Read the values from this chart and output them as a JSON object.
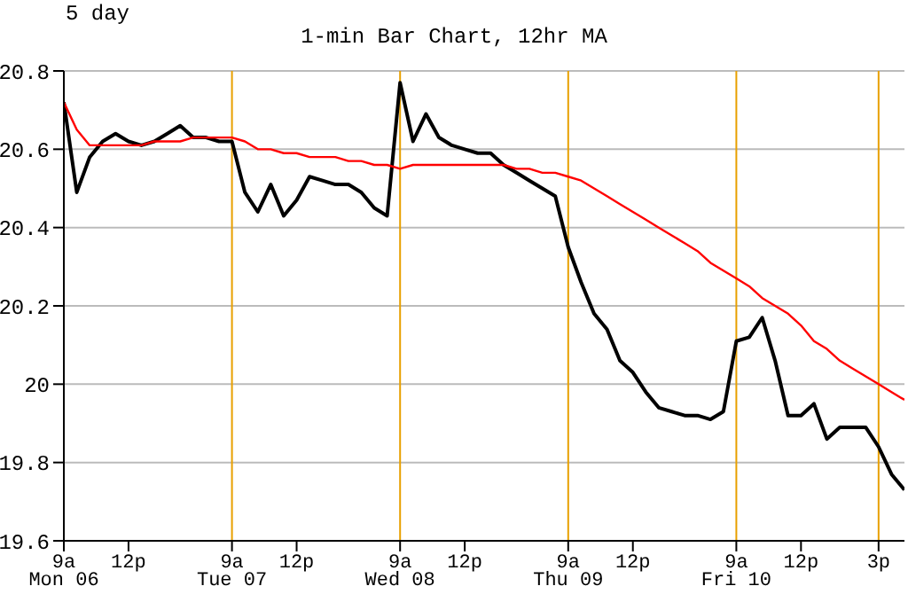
{
  "chart_data": {
    "type": "line",
    "title": "5 day",
    "subtitle": "1-min Bar Chart, 12hr MA",
    "categories": [
      "9a\nMon 06",
      null,
      null,
      null,
      null,
      "12p",
      null,
      null,
      null,
      null,
      null,
      null,
      null,
      "9a\nTue 07",
      null,
      null,
      null,
      null,
      "12p",
      null,
      null,
      null,
      null,
      null,
      null,
      null,
      "9a\nWed 08",
      null,
      null,
      null,
      null,
      "12p",
      null,
      null,
      null,
      null,
      null,
      null,
      null,
      "9a\nThu 09",
      null,
      null,
      null,
      null,
      "12p",
      null,
      null,
      null,
      null,
      null,
      null,
      null,
      "9a\nFri 10",
      null,
      null,
      null,
      null,
      "12p",
      null,
      null,
      null,
      null,
      null,
      "3p",
      null,
      null
    ],
    "ylim": [
      19.6,
      20.8
    ],
    "yticks": [
      19.6,
      19.8,
      20,
      20.2,
      20.4,
      20.6,
      20.8
    ],
    "grid": "y",
    "line_style": "solid",
    "ref_lines": [
      {
        "axis": "x",
        "value": "9a\nTue 07",
        "color": "#e8a000"
      },
      {
        "axis": "x",
        "value": "9a\nWed 08",
        "color": "#e8a000"
      },
      {
        "axis": "x",
        "value": "9a\nThu 09",
        "color": "#e8a000"
      },
      {
        "axis": "x",
        "value": "9a\nFri 10",
        "color": "#e8a000"
      },
      {
        "axis": "x",
        "value": "3p",
        "color": "#e8a000"
      }
    ],
    "series": [
      {
        "color": "#000000",
        "values": [
          20.72,
          20.49,
          20.58,
          20.62,
          20.64,
          20.62,
          20.61,
          20.62,
          20.64,
          20.66,
          20.63,
          20.63,
          20.62,
          20.62,
          20.49,
          20.44,
          20.51,
          20.43,
          20.47,
          20.53,
          20.52,
          20.51,
          20.51,
          20.49,
          20.45,
          20.43,
          20.77,
          20.62,
          20.69,
          20.63,
          20.61,
          20.6,
          20.59,
          20.59,
          20.56,
          20.54,
          20.52,
          20.5,
          20.48,
          20.35,
          20.26,
          20.18,
          20.14,
          20.06,
          20.03,
          19.98,
          19.94,
          19.93,
          19.92,
          19.92,
          19.91,
          19.93,
          20.11,
          20.12,
          20.17,
          20.06,
          19.92,
          19.92,
          19.95,
          19.86,
          19.89,
          19.89,
          19.89,
          19.84,
          19.77,
          19.73
        ]
      },
      {
        "color": "#ff0000",
        "values": [
          20.72,
          20.65,
          20.61,
          20.61,
          20.61,
          20.61,
          20.61,
          20.62,
          20.62,
          20.62,
          20.63,
          20.63,
          20.63,
          20.63,
          20.62,
          20.6,
          20.6,
          20.59,
          20.59,
          20.58,
          20.58,
          20.58,
          20.57,
          20.57,
          20.56,
          20.56,
          20.55,
          20.56,
          20.56,
          20.56,
          20.56,
          20.56,
          20.56,
          20.56,
          20.56,
          20.55,
          20.55,
          20.54,
          20.54,
          20.53,
          20.52,
          20.5,
          20.48,
          20.46,
          20.44,
          20.42,
          20.4,
          20.38,
          20.36,
          20.34,
          20.31,
          20.29,
          20.27,
          20.25,
          20.22,
          20.2,
          20.18,
          20.15,
          20.11,
          20.09,
          20.06,
          20.04,
          20.02,
          20,
          19.98,
          19.96
        ]
      }
    ]
  }
}
